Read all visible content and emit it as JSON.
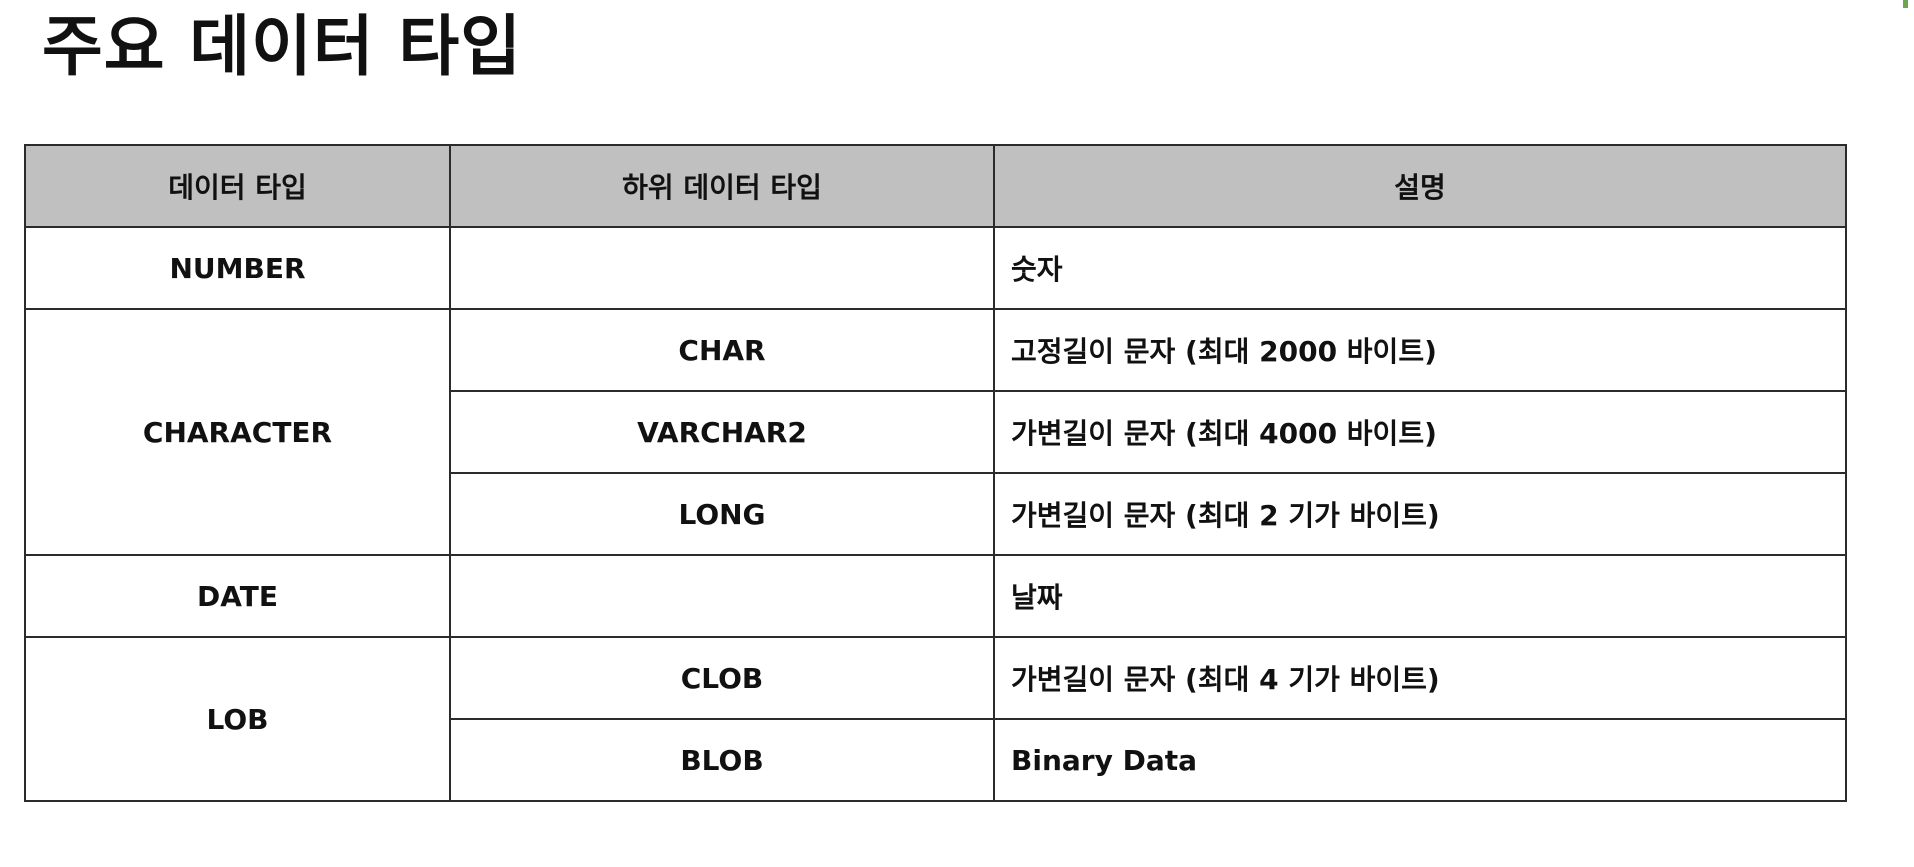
{
  "title": "주요 데이터 타입",
  "table": {
    "headers": {
      "type": "데이터 타입",
      "subtype": "하위 데이터 타입",
      "description": "설명"
    },
    "number": {
      "type": "NUMBER",
      "subtype": "",
      "description": "숫자"
    },
    "character": {
      "type": "CHARACTER",
      "rows": [
        {
          "subtype": "CHAR",
          "description": "고정길이 문자 (최대 2000 바이트)"
        },
        {
          "subtype": "VARCHAR2",
          "description": "가변길이 문자 (최대 4000 바이트)"
        },
        {
          "subtype": "LONG",
          "description": "가변길이 문자 (최대 2 기가 바이트)"
        }
      ]
    },
    "date": {
      "type": "DATE",
      "subtype": "",
      "description": "날짜"
    },
    "lob": {
      "type": "LOB",
      "rows": [
        {
          "subtype": "CLOB",
          "description": "가변길이 문자 (최대 4 기가 바이트)"
        },
        {
          "subtype": "BLOB",
          "description": "Binary Data"
        }
      ]
    }
  },
  "colors": {
    "header_bg": "#c0c0c0",
    "border": "#2b2b2b",
    "text": "#111111",
    "corner_mark": "#6aa84f"
  }
}
